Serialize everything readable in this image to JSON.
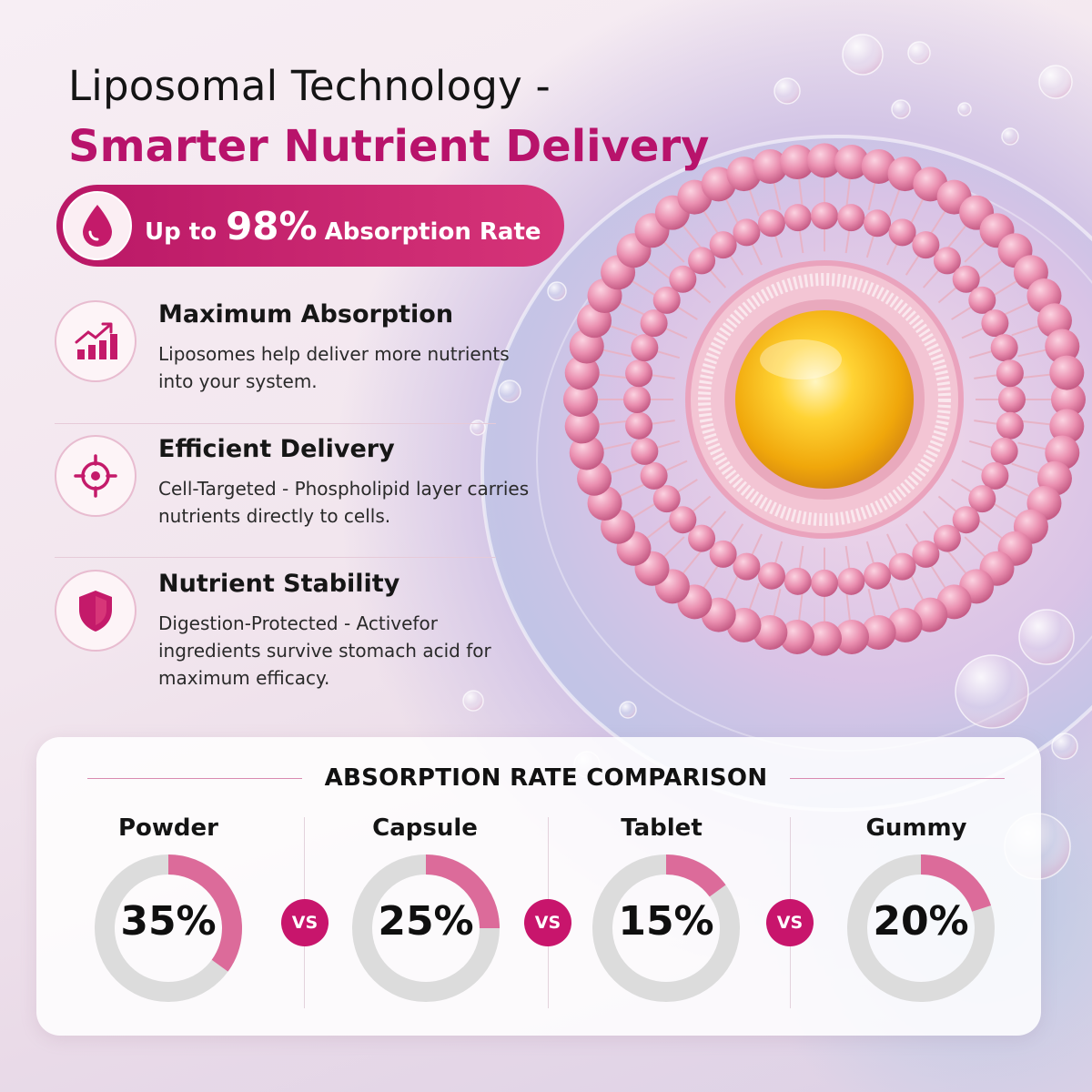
{
  "headline": {
    "line1": "Liposomal Technology -",
    "line2": "Smarter Nutrient Delivery"
  },
  "badge": {
    "prefix": "Up to",
    "value": "98%",
    "suffix": "Absorption Rate",
    "icon": "blood-drop-icon"
  },
  "features": [
    {
      "icon": "growth-chart-icon",
      "title": "Maximum Absorption",
      "description": "Liposomes help deliver more nutrients into your system."
    },
    {
      "icon": "target-icon",
      "title": "Efficient Delivery",
      "description": "Cell-Targeted - Phospholipid layer carries nutrients directly to cells."
    },
    {
      "icon": "shield-icon",
      "title": "Nutrient Stability",
      "description": "Digestion-Protected - Activefor ingredients survive stomach acid for maximum efficacy."
    }
  ],
  "comparison": {
    "title": "ABSORPTION RATE COMPARISON",
    "vs_label": "VS",
    "items": [
      {
        "label": "Powder",
        "percent_text": "35%",
        "percent": 35
      },
      {
        "label": "Capsule",
        "percent_text": "25%",
        "percent": 25
      },
      {
        "label": "Tablet",
        "percent_text": "15%",
        "percent": 15
      },
      {
        "label": "Gummy",
        "percent_text": "20%",
        "percent": 20
      }
    ]
  },
  "colors": {
    "brand_magenta": "#b8136b",
    "ring_fill": "#dc6b9a",
    "ring_track": "#dcdcdc",
    "liposome_pink": "#e889a9",
    "core_yellow": "#f6c416"
  }
}
